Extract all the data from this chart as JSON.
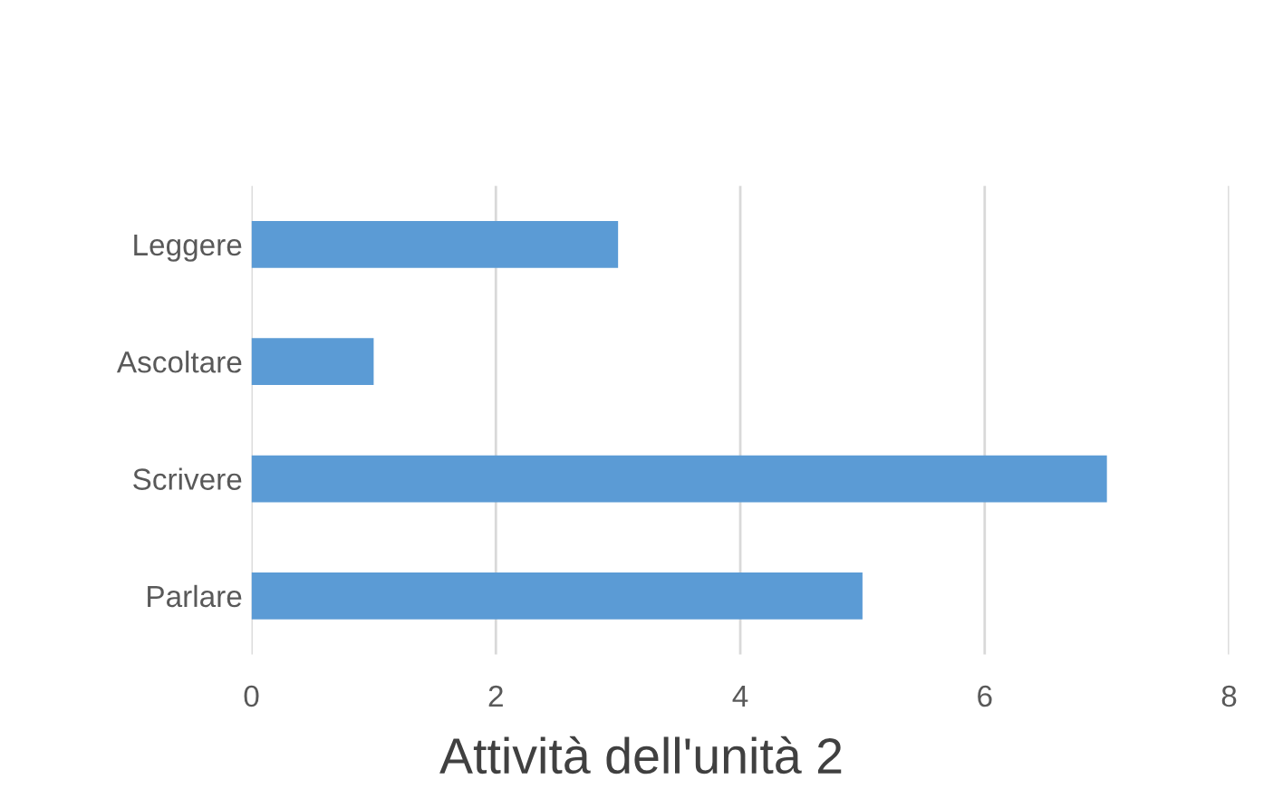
{
  "chart_data": {
    "type": "bar",
    "orientation": "horizontal",
    "title": "Attività dell'unità 2",
    "categories": [
      "Leggere",
      "Ascoltare",
      "Scrivere",
      "Parlare"
    ],
    "values": [
      3,
      1,
      7,
      5
    ],
    "color": "#5b9bd5",
    "xlim": [
      0,
      8
    ],
    "xticks": [
      0,
      2,
      4,
      6,
      8
    ],
    "grid": "x",
    "legend": false
  }
}
